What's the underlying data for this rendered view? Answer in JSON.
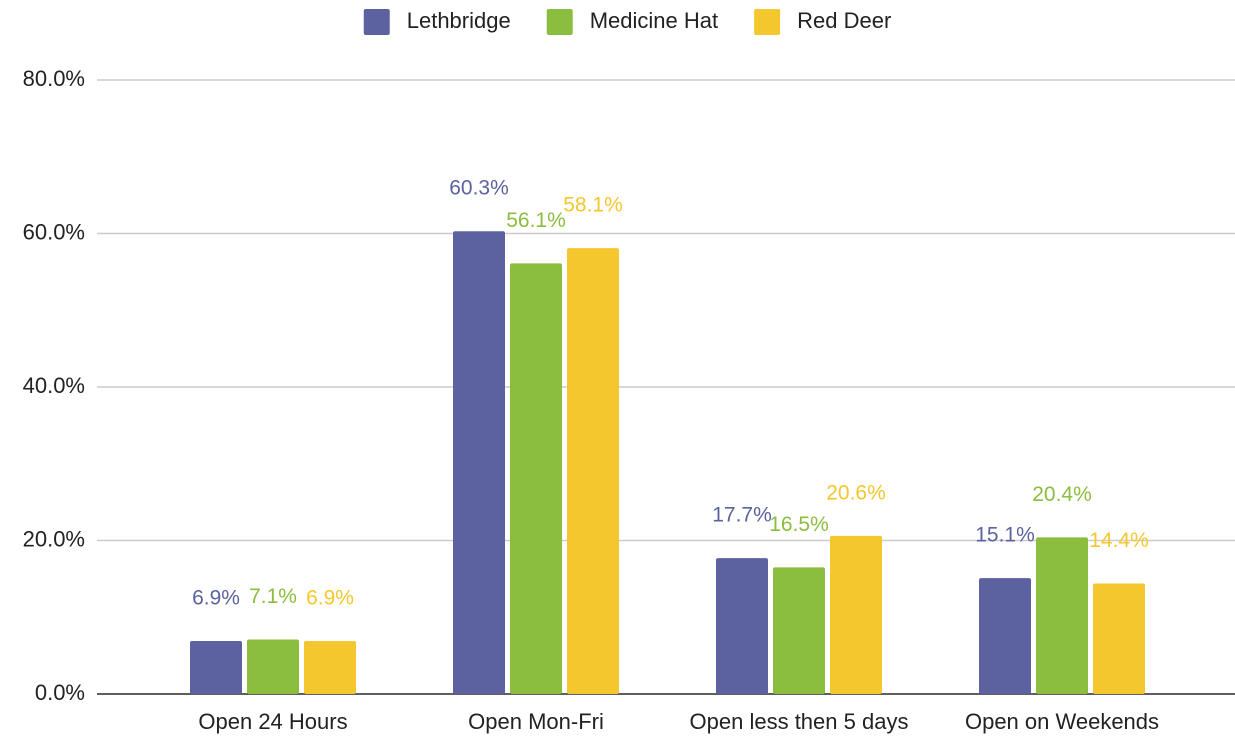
{
  "chart_data": {
    "type": "bar",
    "categories": [
      "Open 24 Hours",
      "Open Mon-Fri",
      "Open less then 5 days",
      "Open on Weekends"
    ],
    "series": [
      {
        "name": "Lethbridge",
        "color": "#5c62a0",
        "values": [
          6.9,
          60.3,
          17.7,
          15.1
        ],
        "value_labels": [
          "6.9%",
          "60.3%",
          "17.7%",
          "15.1%"
        ]
      },
      {
        "name": "Medicine Hat",
        "color": "#8bbd3e",
        "values": [
          7.1,
          56.1,
          16.5,
          20.4
        ],
        "value_labels": [
          "7.1%",
          "56.1%",
          "16.5%",
          "20.4%"
        ]
      },
      {
        "name": "Red Deer",
        "color": "#f5c72e",
        "values": [
          6.9,
          58.1,
          20.6,
          14.4
        ],
        "value_labels": [
          "6.9%",
          "58.1%",
          "20.6%",
          "14.4%"
        ]
      }
    ],
    "ylim": [
      0,
      80
    ],
    "yticks": [
      {
        "value": 0,
        "label": "0.0%"
      },
      {
        "value": 20,
        "label": "20.0%"
      },
      {
        "value": 40,
        "label": "40.0%"
      },
      {
        "value": 60,
        "label": "60.0%"
      },
      {
        "value": 80,
        "label": "80.0%"
      }
    ],
    "grid": true,
    "legend": "top"
  }
}
